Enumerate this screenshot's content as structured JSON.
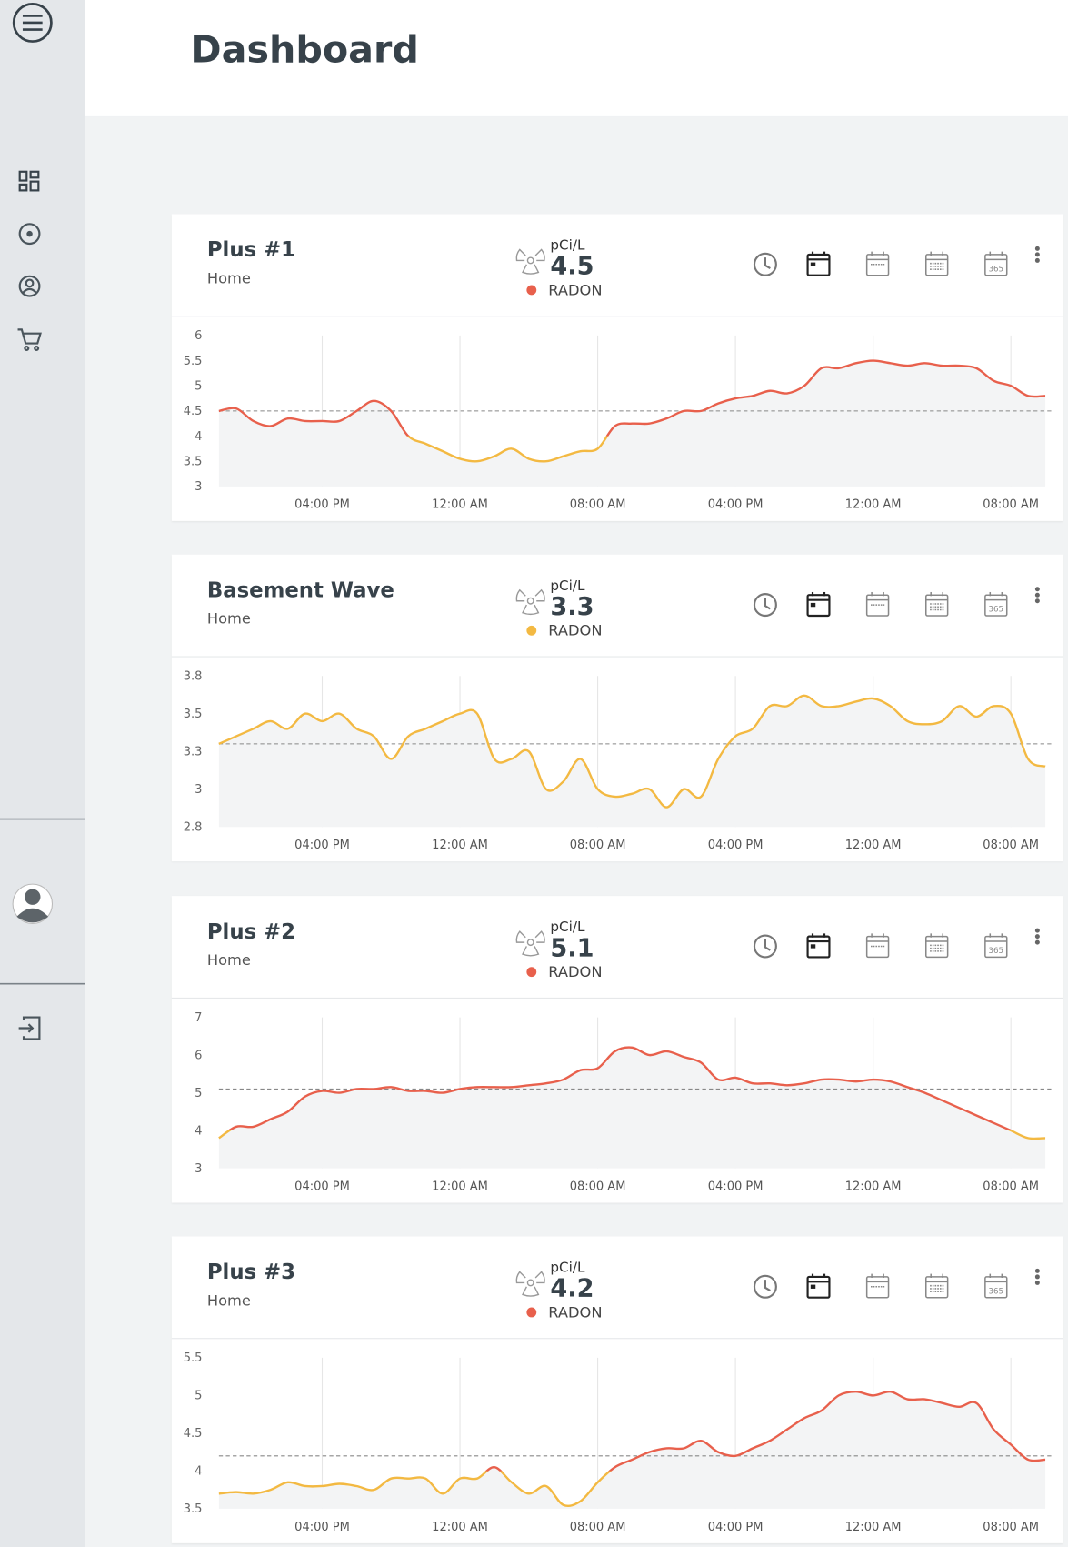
{
  "header": {
    "title": "Dashboard"
  },
  "toolbar": {
    "year_label": "365"
  },
  "cards": [
    {
      "name": "Plus #1",
      "location": "Home",
      "unit": "pCi/L",
      "value": 4.5,
      "label": "RADON",
      "chart_data": {
        "type": "line",
        "warning_level": 4,
        "color_above": "#e8604c",
        "color_below": "#f3b942",
        "fill": "#f3f4f5",
        "categories": [
          null,
          null,
          null,
          null,
          null,
          null,
          "04:00 PM",
          null,
          null,
          null,
          null,
          null,
          null,
          null,
          "12:00 AM",
          null,
          null,
          null,
          null,
          null,
          null,
          null,
          "08:00 AM",
          null,
          null,
          null,
          null,
          null,
          null,
          null,
          "04:00 PM",
          null,
          null,
          null,
          null,
          null,
          null,
          null,
          "12:00 AM",
          null,
          null,
          null,
          null,
          null,
          null,
          null,
          "08:00 AM",
          null,
          null
        ],
        "values": [
          4.5,
          4.55,
          4.3,
          4.2,
          4.35,
          4.3,
          4.3,
          4.3,
          4.5,
          4.7,
          4.5,
          4.0,
          3.85,
          3.7,
          3.55,
          3.5,
          3.6,
          3.75,
          3.55,
          3.5,
          3.6,
          3.7,
          3.75,
          4.2,
          4.25,
          4.25,
          4.35,
          4.5,
          4.5,
          4.65,
          4.75,
          4.8,
          4.9,
          4.85,
          5.0,
          5.35,
          5.35,
          5.45,
          5.5,
          5.45,
          5.4,
          5.45,
          5.4,
          5.4,
          5.35,
          5.1,
          5.0,
          4.8,
          4.8
        ],
        "ylim": [
          3,
          6
        ],
        "yticks": [
          3,
          3.5,
          4,
          4.5,
          5,
          5.5,
          6
        ]
      }
    },
    {
      "name": "Basement Wave",
      "location": "Home",
      "unit": "pCi/L",
      "value": 3.3,
      "label": "RADON",
      "chart_data": {
        "type": "line",
        "warning_level": 4,
        "color_above": "#e8604c",
        "color_below": "#f3b942",
        "fill": "#f3f4f5",
        "categories": [
          null,
          null,
          null,
          null,
          null,
          null,
          "04:00 PM",
          null,
          null,
          null,
          null,
          null,
          null,
          null,
          "12:00 AM",
          null,
          null,
          null,
          null,
          null,
          null,
          null,
          "08:00 AM",
          null,
          null,
          null,
          null,
          null,
          null,
          null,
          "04:00 PM",
          null,
          null,
          null,
          null,
          null,
          null,
          null,
          "12:00 AM",
          null,
          null,
          null,
          null,
          null,
          null,
          null,
          "08:00 AM",
          null,
          null
        ],
        "values": [
          3.3,
          3.35,
          3.4,
          3.45,
          3.4,
          3.5,
          3.45,
          3.5,
          3.4,
          3.35,
          3.2,
          3.35,
          3.4,
          3.45,
          3.5,
          3.5,
          3.2,
          3.2,
          3.25,
          3.0,
          3.05,
          3.2,
          3.0,
          2.95,
          2.97,
          3.0,
          2.88,
          3.0,
          2.95,
          3.2,
          3.35,
          3.4,
          3.55,
          3.55,
          3.62,
          3.55,
          3.55,
          3.58,
          3.6,
          3.55,
          3.45,
          3.43,
          3.45,
          3.55,
          3.48,
          3.55,
          3.5,
          3.2,
          3.15
        ],
        "ylim": [
          2.75,
          3.75
        ],
        "yticks": [
          {
            "value": 2.75,
            "label": "2.8"
          },
          3,
          {
            "value": 3.25,
            "label": "3.3"
          },
          3.5,
          {
            "value": 3.75,
            "label": "3.8"
          }
        ]
      }
    },
    {
      "name": "Plus #2",
      "location": "Home",
      "unit": "pCi/L",
      "value": 5.1,
      "label": "RADON",
      "chart_data": {
        "type": "line",
        "warning_level": 4,
        "color_above": "#e8604c",
        "color_below": "#f3b942",
        "fill": "#f3f4f5",
        "categories": [
          null,
          null,
          null,
          null,
          null,
          null,
          "04:00 PM",
          null,
          null,
          null,
          null,
          null,
          null,
          null,
          "12:00 AM",
          null,
          null,
          null,
          null,
          null,
          null,
          null,
          "08:00 AM",
          null,
          null,
          null,
          null,
          null,
          null,
          null,
          "04:00 PM",
          null,
          null,
          null,
          null,
          null,
          null,
          null,
          "12:00 AM",
          null,
          null,
          null,
          null,
          null,
          null,
          null,
          "08:00 AM",
          null,
          null
        ],
        "values": [
          3.8,
          4.1,
          4.1,
          4.3,
          4.5,
          4.9,
          5.05,
          5.0,
          5.1,
          5.1,
          5.15,
          5.05,
          5.05,
          5.0,
          5.1,
          5.15,
          5.15,
          5.15,
          5.2,
          5.25,
          5.35,
          5.6,
          5.65,
          6.1,
          6.2,
          6.0,
          6.1,
          5.95,
          5.8,
          5.35,
          5.4,
          5.25,
          5.25,
          5.2,
          5.25,
          5.35,
          5.35,
          5.3,
          5.35,
          5.3,
          5.15,
          5.0,
          4.8,
          4.6,
          4.4,
          4.2,
          4.0,
          3.8,
          3.8
        ],
        "ylim": [
          3,
          7
        ],
        "yticks": [
          3,
          4,
          5,
          6,
          7
        ]
      }
    },
    {
      "name": "Plus #3",
      "location": "Home",
      "unit": "pCi/L",
      "value": 4.2,
      "label": "RADON",
      "chart_data": {
        "type": "line",
        "warning_level": 4,
        "color_above": "#e8604c",
        "color_below": "#f3b942",
        "fill": "#f3f4f5",
        "categories": [
          null,
          null,
          null,
          null,
          null,
          null,
          "04:00 PM",
          null,
          null,
          null,
          null,
          null,
          null,
          null,
          "12:00 AM",
          null,
          null,
          null,
          null,
          null,
          null,
          null,
          "08:00 AM",
          null,
          null,
          null,
          null,
          null,
          null,
          null,
          "04:00 PM",
          null,
          null,
          null,
          null,
          null,
          null,
          null,
          "12:00 AM",
          null,
          null,
          null,
          null,
          null,
          null,
          null,
          "08:00 AM",
          null,
          null
        ],
        "values": [
          3.7,
          3.72,
          3.7,
          3.75,
          3.85,
          3.8,
          3.8,
          3.83,
          3.8,
          3.75,
          3.9,
          3.9,
          3.9,
          3.7,
          3.9,
          3.9,
          4.05,
          3.85,
          3.7,
          3.8,
          3.55,
          3.6,
          3.85,
          4.05,
          4.15,
          4.25,
          4.3,
          4.3,
          4.4,
          4.25,
          4.2,
          4.3,
          4.4,
          4.55,
          4.7,
          4.8,
          5.0,
          5.05,
          5.0,
          5.05,
          4.95,
          4.95,
          4.9,
          4.85,
          4.9,
          4.55,
          4.35,
          4.15,
          4.15
        ],
        "ylim": [
          3.5,
          5.5
        ],
        "yticks": [
          3.5,
          4,
          4.5,
          5,
          5.5
        ]
      }
    }
  ]
}
